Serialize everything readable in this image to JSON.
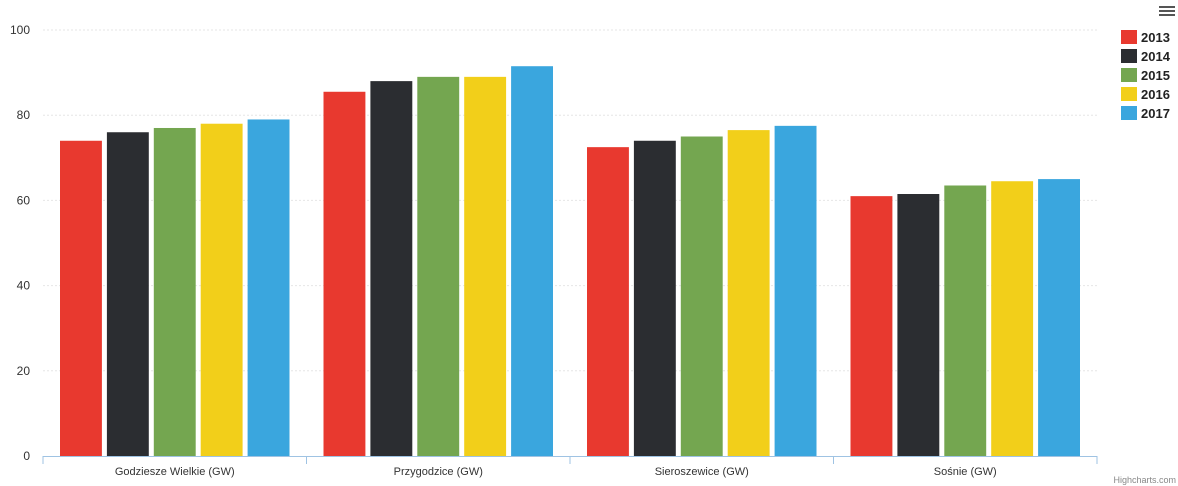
{
  "chart_data": {
    "type": "bar",
    "title": "",
    "xlabel": "",
    "ylabel": "",
    "categories": [
      "Godzieszе Wielkie (GW)",
      "Przygodzice (GW)",
      "Sieroszewice (GW)",
      "Sośnie (GW)"
    ],
    "series": [
      {
        "name": "2013",
        "color": "#e8392f",
        "values": [
          74,
          85.5,
          72.5,
          61
        ]
      },
      {
        "name": "2014",
        "color": "#2b2d31",
        "values": [
          76,
          88,
          74,
          61.5
        ]
      },
      {
        "name": "2015",
        "color": "#74a650",
        "values": [
          77,
          89,
          75,
          63.5
        ]
      },
      {
        "name": "2016",
        "color": "#f2cf1a",
        "values": [
          78,
          89,
          76.5,
          64.5
        ]
      },
      {
        "name": "2017",
        "color": "#3aa6de",
        "values": [
          79,
          91.5,
          77.5,
          65
        ]
      }
    ],
    "ylim": [
      0,
      100
    ],
    "yticks": [
      0,
      20,
      40,
      60,
      80,
      100
    ],
    "grid": true,
    "legend_position": "top-right"
  },
  "credits": "Highcharts.com",
  "menu_icon": "hamburger-menu-icon"
}
